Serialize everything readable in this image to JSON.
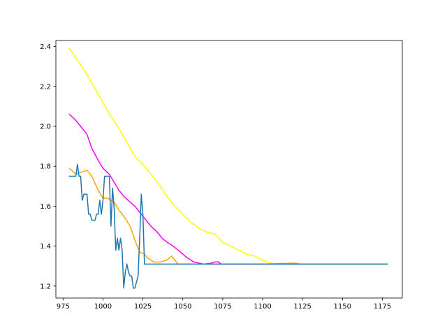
{
  "chart_data": {
    "type": "line",
    "title": "",
    "xlabel": "",
    "ylabel": "",
    "xlim": [
      970.5,
      1187.5
    ],
    "ylim": [
      1.14,
      2.43
    ],
    "grid": false,
    "legend": "none",
    "x_ticks": [
      975,
      1000,
      1025,
      1050,
      1075,
      1100,
      1125,
      1150,
      1175
    ],
    "y_ticks": [
      1.2,
      1.4,
      1.6,
      1.8,
      2.0,
      2.2,
      2.4
    ],
    "x_tick_labels": [
      "975",
      "1000",
      "1025",
      "1050",
      "1075",
      "1100",
      "1125",
      "1150",
      "1175"
    ],
    "y_tick_labels": [
      "1.2",
      "1.4",
      "1.6",
      "1.8",
      "2.0",
      "2.2",
      "2.4"
    ],
    "series": [
      {
        "color": "#ffff00",
        "points": [
          [
            979,
            2.39
          ],
          [
            985,
            2.32
          ],
          [
            990,
            2.26
          ],
          [
            995,
            2.19
          ],
          [
            1000,
            2.12
          ],
          [
            1005,
            2.05
          ],
          [
            1010,
            1.99
          ],
          [
            1015,
            1.92
          ],
          [
            1020,
            1.85
          ],
          [
            1025,
            1.81
          ],
          [
            1030,
            1.76
          ],
          [
            1035,
            1.71
          ],
          [
            1040,
            1.65
          ],
          [
            1045,
            1.6
          ],
          [
            1050,
            1.56
          ],
          [
            1055,
            1.52
          ],
          [
            1060,
            1.49
          ],
          [
            1065,
            1.47
          ],
          [
            1070,
            1.46
          ],
          [
            1075,
            1.42
          ],
          [
            1080,
            1.4
          ],
          [
            1085,
            1.38
          ],
          [
            1090,
            1.36
          ],
          [
            1095,
            1.35
          ],
          [
            1100,
            1.33
          ],
          [
            1105,
            1.315
          ],
          [
            1110,
            1.31
          ],
          [
            1120,
            1.31
          ],
          [
            1130,
            1.31
          ],
          [
            1150,
            1.31
          ],
          [
            1178,
            1.31
          ]
        ]
      },
      {
        "color": "#ff00ff",
        "points": [
          [
            979,
            2.06
          ],
          [
            983,
            2.03
          ],
          [
            986,
            2.0
          ],
          [
            990,
            1.96
          ],
          [
            993,
            1.89
          ],
          [
            997,
            1.83
          ],
          [
            1000,
            1.79
          ],
          [
            1004,
            1.76
          ],
          [
            1007,
            1.72
          ],
          [
            1010,
            1.68
          ],
          [
            1013,
            1.65
          ],
          [
            1017,
            1.62
          ],
          [
            1020,
            1.6
          ],
          [
            1023,
            1.57
          ],
          [
            1027,
            1.53
          ],
          [
            1030,
            1.5
          ],
          [
            1034,
            1.47
          ],
          [
            1037,
            1.44
          ],
          [
            1040,
            1.42
          ],
          [
            1044,
            1.4
          ],
          [
            1047,
            1.38
          ],
          [
            1050,
            1.36
          ],
          [
            1053,
            1.34
          ],
          [
            1057,
            1.32
          ],
          [
            1060,
            1.315
          ],
          [
            1063,
            1.31
          ],
          [
            1067,
            1.313
          ],
          [
            1070,
            1.32
          ],
          [
            1072,
            1.322
          ],
          [
            1074,
            1.31
          ],
          [
            1080,
            1.31
          ],
          [
            1100,
            1.31
          ],
          [
            1118,
            1.31
          ],
          [
            1121,
            1.31
          ],
          [
            1125,
            1.31
          ]
        ]
      },
      {
        "color": "#ffa500",
        "points": [
          [
            979,
            1.79
          ],
          [
            983,
            1.76
          ],
          [
            986,
            1.77
          ],
          [
            990,
            1.78
          ],
          [
            993,
            1.75
          ],
          [
            997,
            1.68
          ],
          [
            1000,
            1.64
          ],
          [
            1003,
            1.64
          ],
          [
            1007,
            1.62
          ],
          [
            1010,
            1.58
          ],
          [
            1013,
            1.55
          ],
          [
            1017,
            1.5
          ],
          [
            1020,
            1.43
          ],
          [
            1023,
            1.37
          ],
          [
            1026,
            1.36
          ],
          [
            1028,
            1.34
          ],
          [
            1032,
            1.32
          ],
          [
            1036,
            1.32
          ],
          [
            1040,
            1.33
          ],
          [
            1043,
            1.35
          ],
          [
            1045,
            1.33
          ],
          [
            1047,
            1.31
          ],
          [
            1050,
            1.31
          ],
          [
            1060,
            1.31
          ],
          [
            1075,
            1.31
          ],
          [
            1100,
            1.31
          ],
          [
            1120,
            1.315
          ],
          [
            1124,
            1.31
          ],
          [
            1140,
            1.31
          ],
          [
            1160,
            1.31
          ],
          [
            1178,
            1.31
          ]
        ]
      },
      {
        "color": "#1f77b4",
        "points": [
          [
            979,
            1.75
          ],
          [
            980,
            1.75
          ],
          [
            981,
            1.75
          ],
          [
            982,
            1.75
          ],
          [
            983,
            1.75
          ],
          [
            984,
            1.81
          ],
          [
            985,
            1.75
          ],
          [
            986,
            1.75
          ],
          [
            987,
            1.63
          ],
          [
            988,
            1.66
          ],
          [
            989,
            1.66
          ],
          [
            990,
            1.66
          ],
          [
            991,
            1.56
          ],
          [
            992,
            1.56
          ],
          [
            993,
            1.53
          ],
          [
            994,
            1.53
          ],
          [
            995,
            1.53
          ],
          [
            996,
            1.56
          ],
          [
            997,
            1.56
          ],
          [
            998,
            1.63
          ],
          [
            999,
            1.56
          ],
          [
            1000,
            1.63
          ],
          [
            1001,
            1.75
          ],
          [
            1002,
            1.75
          ],
          [
            1003,
            1.75
          ],
          [
            1004,
            1.75
          ],
          [
            1005,
            1.5
          ],
          [
            1006,
            1.69
          ],
          [
            1007,
            1.59
          ],
          [
            1008,
            1.38
          ],
          [
            1009,
            1.44
          ],
          [
            1010,
            1.38
          ],
          [
            1011,
            1.44
          ],
          [
            1012,
            1.38
          ],
          [
            1013,
            1.19
          ],
          [
            1014,
            1.27
          ],
          [
            1015,
            1.31
          ],
          [
            1016,
            1.27
          ],
          [
            1017,
            1.25
          ],
          [
            1018,
            1.25
          ],
          [
            1019,
            1.19
          ],
          [
            1020,
            1.19
          ],
          [
            1021,
            1.22
          ],
          [
            1022,
            1.25
          ],
          [
            1023,
            1.44
          ],
          [
            1024,
            1.66
          ],
          [
            1025,
            1.56
          ],
          [
            1026,
            1.31
          ],
          [
            1027,
            1.31
          ],
          [
            1030,
            1.31
          ],
          [
            1040,
            1.31
          ],
          [
            1060,
            1.31
          ],
          [
            1080,
            1.31
          ],
          [
            1100,
            1.31
          ],
          [
            1125,
            1.31
          ],
          [
            1150,
            1.31
          ],
          [
            1178,
            1.31
          ]
        ]
      }
    ]
  }
}
